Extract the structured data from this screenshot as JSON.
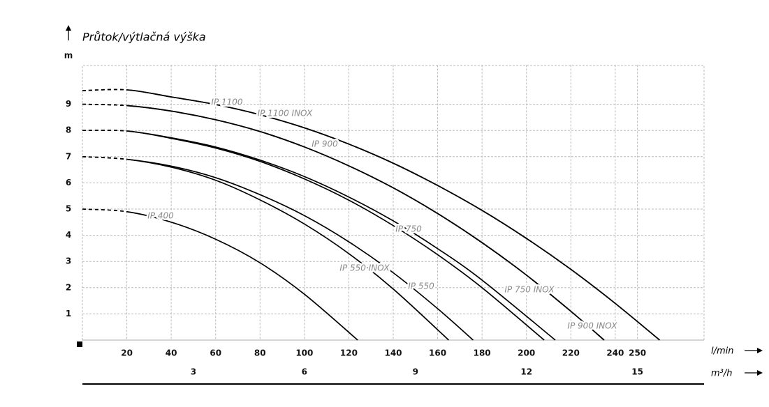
{
  "chart_data": {
    "type": "line",
    "title": "Průtok/výtlačná výška",
    "y_label": "m",
    "x_label": "l/min",
    "x2_label": "m³/h",
    "xlim": [
      0,
      280
    ],
    "xticks": [
      20,
      40,
      60,
      80,
      100,
      120,
      140,
      160,
      180,
      200,
      220,
      240,
      250
    ],
    "x2lim": [
      0,
      16.8
    ],
    "x2ticks": [
      3,
      6,
      9,
      12,
      15
    ],
    "ylim": [
      0,
      10.5
    ],
    "yticks": [
      1,
      2,
      3,
      4,
      5,
      6,
      7,
      8,
      9
    ],
    "grid": true,
    "color": "#000000",
    "series": [
      {
        "name": "IP 1100",
        "x": [
          0,
          20,
          40,
          60,
          80,
          100,
          120,
          140,
          160,
          180,
          200,
          220,
          240,
          260
        ],
        "values": [
          9.52,
          9.55,
          9.28,
          8.99,
          8.6,
          8.1,
          7.48,
          6.75,
          5.9,
          4.95,
          3.88,
          2.7,
          1.4,
          0
        ]
      },
      {
        "name": "IP 1100 INOX",
        "x": [
          0,
          20,
          40,
          60,
          80,
          100,
          120,
          140,
          160,
          180,
          200,
          220,
          240,
          260
        ],
        "values": [
          9.52,
          9.55,
          9.28,
          8.99,
          8.6,
          8.1,
          7.48,
          6.75,
          5.9,
          4.95,
          3.88,
          2.7,
          1.4,
          0
        ]
      },
      {
        "name": "IP 900",
        "x": [
          0,
          20,
          40,
          60,
          80,
          100,
          120,
          140,
          160,
          180,
          200,
          220,
          235
        ],
        "values": [
          9.0,
          8.95,
          8.74,
          8.41,
          7.96,
          7.37,
          6.65,
          5.81,
          4.83,
          3.72,
          2.48,
          1.1,
          0
        ]
      },
      {
        "name": "IP 900 INOX",
        "x": [
          0,
          20,
          40,
          60,
          80,
          100,
          120,
          140,
          160,
          180,
          200,
          220,
          235
        ],
        "values": [
          9.0,
          8.95,
          8.74,
          8.41,
          7.96,
          7.37,
          6.65,
          5.81,
          4.83,
          3.72,
          2.48,
          1.1,
          0
        ]
      },
      {
        "name": "IP 750",
        "x": [
          0,
          20,
          40,
          60,
          80,
          100,
          120,
          140,
          160,
          180,
          213
        ],
        "values": [
          8.0,
          7.98,
          7.72,
          7.37,
          6.87,
          6.24,
          5.46,
          4.55,
          3.49,
          2.29,
          0
        ]
      },
      {
        "name": "IP 750 INOX",
        "x": [
          0,
          20,
          40,
          60,
          80,
          100,
          120,
          140,
          160,
          180,
          208
        ],
        "values": [
          8.0,
          7.98,
          7.7,
          7.33,
          6.82,
          6.15,
          5.34,
          4.37,
          3.26,
          2.0,
          0
        ]
      },
      {
        "name": "IP 550",
        "x": [
          0,
          20,
          40,
          60,
          80,
          100,
          120,
          140,
          160,
          176
        ],
        "values": [
          7.0,
          6.9,
          6.64,
          6.2,
          5.55,
          4.75,
          3.75,
          2.57,
          1.2,
          0
        ]
      },
      {
        "name": "IP 550 INOX",
        "x": [
          0,
          20,
          40,
          60,
          80,
          100,
          120,
          140,
          165
        ],
        "values": [
          7.0,
          6.9,
          6.6,
          6.1,
          5.35,
          4.43,
          3.3,
          1.95,
          0
        ]
      },
      {
        "name": "IP 400",
        "x": [
          0,
          20,
          40,
          60,
          80,
          100,
          124
        ],
        "values": [
          5.0,
          4.9,
          4.5,
          3.85,
          2.95,
          1.75,
          0
        ]
      }
    ]
  }
}
